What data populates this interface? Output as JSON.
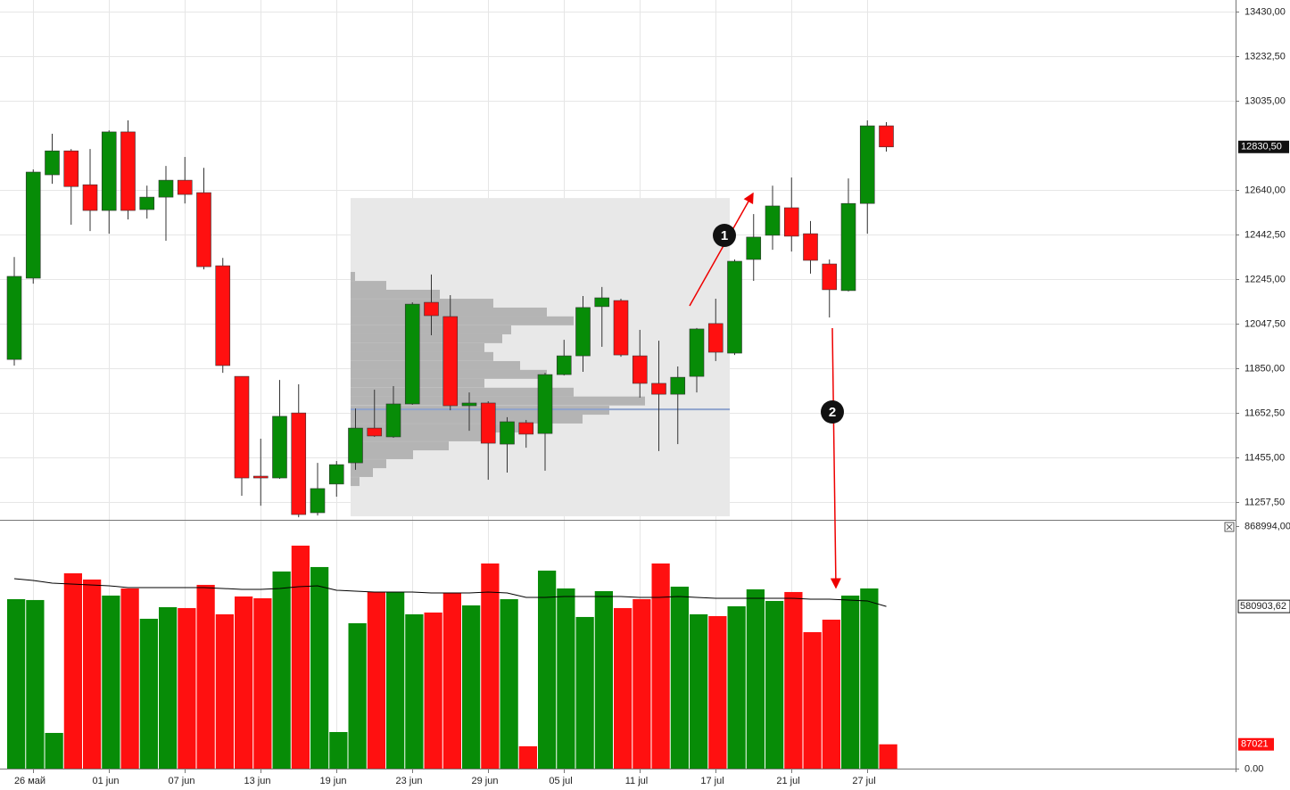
{
  "chart_data": [
    {
      "type": "candlestick",
      "up_color": "#078c07",
      "down_color": "#ff1010",
      "grid": true,
      "open": [
        11889,
        12249,
        12707,
        12813,
        12663,
        12549,
        12897,
        12553,
        12608,
        12683,
        12628,
        12304,
        11814,
        11372,
        11364,
        11652,
        11210,
        11337,
        11431,
        11585,
        11546,
        11692,
        12142,
        12079,
        11684,
        11696,
        11514,
        11609,
        11561,
        11822,
        11905,
        12123,
        12150,
        11905,
        11783,
        11735,
        11814,
        12048,
        11917,
        12332,
        12439,
        12561,
        12446,
        12312,
        12194,
        12580,
        12924
      ],
      "high": [
        12343,
        12731,
        12889,
        12821,
        12821,
        12904,
        12948,
        12659,
        12746,
        12786,
        12738,
        12339,
        11814,
        11538,
        11798,
        11779,
        11431,
        11439,
        11672,
        11755,
        11771,
        12142,
        12265,
        12174,
        11743,
        11704,
        11633,
        11621,
        11830,
        11976,
        12170,
        12210,
        12158,
        12020,
        11972,
        11858,
        12028,
        12158,
        12332,
        12533,
        12659,
        12695,
        12502,
        12332,
        12691,
        12948,
        12940
      ],
      "low": [
        11862,
        12225,
        12667,
        12486,
        12458,
        12446,
        12509,
        12513,
        12415,
        12580,
        12288,
        11830,
        11285,
        11241,
        11360,
        11190,
        11198,
        11281,
        11400,
        11546,
        11542,
        11688,
        11996,
        11664,
        11573,
        11356,
        11388,
        11498,
        11396,
        11818,
        11834,
        11945,
        11901,
        11720,
        11483,
        11514,
        11743,
        11882,
        11909,
        12237,
        12375,
        12367,
        12269,
        12075,
        12190,
        12446,
        12810
      ],
      "close": [
        12257,
        12719,
        12813,
        12655,
        12549,
        12897,
        12549,
        12608,
        12683,
        12620,
        12300,
        11862,
        11364,
        11364,
        11637,
        11202,
        11317,
        11423,
        11585,
        11550,
        11692,
        12134,
        12083,
        11684,
        11696,
        11518,
        11613,
        11558,
        11822,
        11905,
        12119,
        12162,
        11909,
        11783,
        11735,
        11810,
        12024,
        11921,
        12324,
        12431,
        12569,
        12435,
        12328,
        12198,
        12580,
        12924,
        12830.5
      ],
      "close_labels": [
        null,
        null,
        null,
        null,
        null,
        null,
        null,
        null,
        null,
        null,
        null,
        null,
        null,
        null,
        null,
        null,
        null,
        null,
        null,
        null,
        null,
        null,
        null,
        null,
        null,
        null,
        null,
        null,
        null,
        null,
        null,
        null,
        null,
        null,
        null,
        null,
        null,
        null,
        null,
        null,
        null,
        null,
        null,
        null,
        null,
        null,
        "12830,50"
      ],
      "ylim": [
        11178.5,
        13481.35
      ],
      "yticks": [
        {
          "value": 11257.5,
          "label": "11257,50"
        },
        {
          "value": 11455,
          "label": "11455,00"
        },
        {
          "value": 11652.5,
          "label": "11652,50"
        },
        {
          "value": 11850,
          "label": "11850,00"
        },
        {
          "value": 12047.5,
          "label": "12047,50"
        },
        {
          "value": 12245,
          "label": "12245,00"
        },
        {
          "value": 12442.5,
          "label": "12442,50"
        },
        {
          "value": 12640,
          "label": "12640,00"
        },
        {
          "value": 13035,
          "label": "13035,00"
        },
        {
          "value": 13232.5,
          "label": "13232,50"
        },
        {
          "value": 13430,
          "label": "13430,00"
        }
      ],
      "profile": {
        "high": 12604,
        "low": 11194,
        "poc": 11668,
        "levels": [
          12257,
          12217,
          12178,
          12138,
          12099,
          12060,
          12020,
          11981,
          11941,
          11902,
          11862,
          11823,
          11784,
          11744,
          11705,
          11664,
          11625,
          11585,
          11546,
          11506,
          11467,
          11427,
          11388,
          11348
        ],
        "values": [
          5,
          40,
          100,
          160,
          220,
          250,
          180,
          170,
          150,
          160,
          190,
          220,
          150,
          250,
          330,
          290,
          260,
          190,
          150,
          110,
          70,
          40,
          25,
          10
        ]
      },
      "annotations": [
        {
          "text": "1"
        },
        {
          "text": "2"
        }
      ]
    },
    {
      "type": "bar",
      "categories": [
        null,
        "26 май",
        null,
        null,
        null,
        "01 jun",
        null,
        null,
        null,
        "07 jun",
        null,
        null,
        null,
        "13 jun",
        null,
        null,
        null,
        "19 jun",
        null,
        null,
        null,
        "23 jun",
        null,
        null,
        null,
        "29 jun",
        null,
        null,
        null,
        "05 jul",
        null,
        null,
        null,
        "11 jul",
        null,
        null,
        null,
        "17 jul",
        null,
        null,
        null,
        "21 jul",
        null,
        null,
        null,
        "27 jul",
        null
      ],
      "values": [
        607050,
        603855,
        127800,
        699705,
        677340,
        619830,
        645390,
        536760,
        578295,
        575100,
        658170,
        552735,
        616635,
        610245,
        706095,
        798750,
        722070,
        130995,
        520785,
        632610,
        632610,
        552735,
        559125,
        629415,
        584685,
        734850,
        607050,
        79875,
        709290,
        645390,
        543150,
        635805,
        575100,
        607050,
        734850,
        651780,
        552735,
        546345,
        581490,
        642195,
        600660,
        632610,
        488835,
        533565,
        619830,
        645390,
        87021
      ],
      "ma": {
        "color": "#000000",
        "values": [
          680535,
          674145,
          664560,
          661365,
          658170,
          654975,
          648585,
          648585,
          648585,
          648585,
          648585,
          645390,
          642195,
          642195,
          645390,
          651780,
          654975,
          639000,
          635805,
          632610,
          632610,
          632610,
          629415,
          629415,
          629415,
          632610,
          629415,
          613440,
          613440,
          616635,
          616635,
          616635,
          616635,
          613440,
          613440,
          616635,
          613440,
          610245,
          610245,
          610245,
          610245,
          610245,
          607050,
          607050,
          603855,
          600660,
          580903.62
        ],
        "value_labels": [
          null,
          null,
          null,
          null,
          null,
          null,
          null,
          null,
          null,
          null,
          null,
          null,
          null,
          null,
          null,
          null,
          null,
          null,
          null,
          null,
          null,
          null,
          null,
          null,
          null,
          null,
          null,
          null,
          null,
          null,
          null,
          null,
          null,
          null,
          null,
          null,
          null,
          null,
          null,
          null,
          null,
          null,
          null,
          null,
          null,
          null,
          "580903,62"
        ]
      },
      "ylim": [
        0,
        888000
      ],
      "yticks": [
        {
          "value": 0,
          "label": "0.00"
        },
        {
          "value": 868994,
          "label": "868994,00"
        }
      ]
    }
  ]
}
